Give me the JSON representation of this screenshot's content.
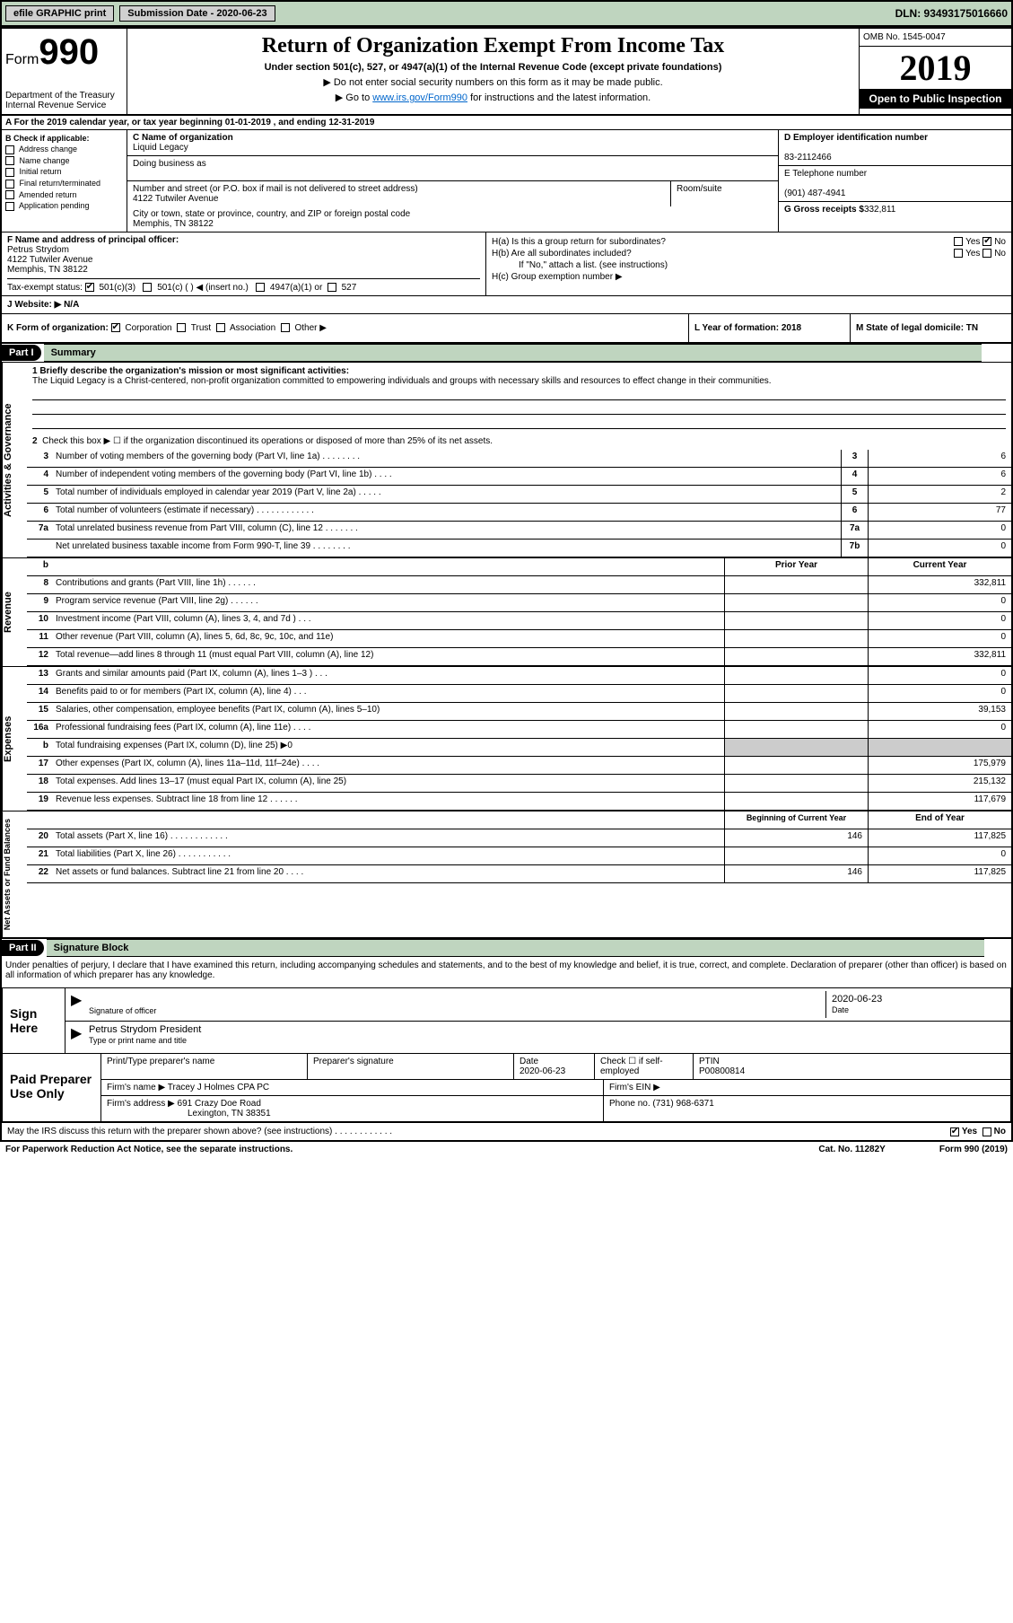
{
  "topbar": {
    "efile": "efile GRAPHIC print",
    "submission_label": "Submission Date - 2020-06-23",
    "dln": "DLN: 93493175016660"
  },
  "header": {
    "form_label": "Form",
    "form_num": "990",
    "dept": "Department of the Treasury\nInternal Revenue Service",
    "title": "Return of Organization Exempt From Income Tax",
    "subtitle": "Under section 501(c), 527, or 4947(a)(1) of the Internal Revenue Code (except private foundations)",
    "note1": "▶ Do not enter social security numbers on this form as it may be made public.",
    "note2_pre": "▶ Go to ",
    "note2_link": "www.irs.gov/Form990",
    "note2_post": " for instructions and the latest information.",
    "omb": "OMB No. 1545-0047",
    "year": "2019",
    "oti": "Open to Public Inspection"
  },
  "row_a": "A For the 2019 calendar year, or tax year beginning 01-01-2019   , and ending 12-31-2019",
  "sec_b": {
    "title": "B Check if applicable:",
    "opts": [
      "Address change",
      "Name change",
      "Initial return",
      "Final return/terminated",
      "Amended return",
      "Application pending"
    ]
  },
  "sec_c": {
    "name_label": "C Name of organization",
    "name": "Liquid Legacy",
    "dba_label": "Doing business as",
    "dba": "",
    "addr_label": "Number and street (or P.O. box if mail is not delivered to street address)",
    "addr": "4122 Tutwiler Avenue",
    "room_label": "Room/suite",
    "city_label": "City or town, state or province, country, and ZIP or foreign postal code",
    "city": "Memphis, TN  38122"
  },
  "sec_d": {
    "ein_label": "D Employer identification number",
    "ein": "83-2112466",
    "phone_label": "E Telephone number",
    "phone": "(901) 487-4941",
    "gross_label": "G Gross receipts $",
    "gross": "332,811"
  },
  "sec_f": {
    "label": "F  Name and address of principal officer:",
    "name": "Petrus Strydom",
    "addr1": "4122 Tutwiler Avenue",
    "addr2": "Memphis, TN  38122",
    "tax_label": "Tax-exempt status:",
    "t1": "501(c)(3)",
    "t2": "501(c) (  ) ◀ (insert no.)",
    "t3": "4947(a)(1) or",
    "t4": "527"
  },
  "sec_h": {
    "ha": "H(a)  Is this a group return for subordinates?",
    "hb": "H(b)  Are all subordinates included?",
    "hb_note": "If \"No,\" attach a list. (see instructions)",
    "hc": "H(c)  Group exemption number ▶",
    "yes": "Yes",
    "no": "No"
  },
  "row_j": "J   Website: ▶   N/A",
  "row_k": {
    "label": "K Form of organization:",
    "opts": [
      "Corporation",
      "Trust",
      "Association",
      "Other ▶"
    ],
    "l": "L Year of formation: 2018",
    "m": "M State of legal domicile: TN"
  },
  "part1": {
    "hdr": "Part I",
    "title": "Summary",
    "l1_label": "1  Briefly describe the organization's mission or most significant activities:",
    "l1_text": "The Liquid Legacy is a Christ-centered, non-profit organization committed to empowering individuals and groups with necessary skills and resources to effect change in their communities.",
    "l2": "Check this box ▶ ☐ if the organization discontinued its operations or disposed of more than 25% of its net assets."
  },
  "sides": {
    "s1": "Activities & Governance",
    "s2": "Revenue",
    "s3": "Expenses",
    "s4": "Net Assets or Fund Balances"
  },
  "gov_lines": [
    {
      "n": "3",
      "t": "Number of voting members of the governing body (Part VI, line 1a)  .   .   .   .   .   .   .   .",
      "b": "3",
      "v": "6"
    },
    {
      "n": "4",
      "t": "Number of independent voting members of the governing body (Part VI, line 1b)  .   .   .   .",
      "b": "4",
      "v": "6"
    },
    {
      "n": "5",
      "t": "Total number of individuals employed in calendar year 2019 (Part V, line 2a)  .   .   .   .   .",
      "b": "5",
      "v": "2"
    },
    {
      "n": "6",
      "t": "Total number of volunteers (estimate if necessary)   .   .   .   .   .   .   .   .   .   .   .   .",
      "b": "6",
      "v": "77"
    },
    {
      "n": "7a",
      "t": "Total unrelated business revenue from Part VIII, column (C), line 12   .   .   .   .   .   .   .",
      "b": "7a",
      "v": "0"
    },
    {
      "n": "",
      "t": "Net unrelated business taxable income from Form 990-T, line 39   .   .   .   .   .   .   .   .",
      "b": "7b",
      "v": "0"
    }
  ],
  "yr_hdr": {
    "prior": "Prior Year",
    "current": "Current Year"
  },
  "rev_lines": [
    {
      "n": "8",
      "t": "Contributions and grants (Part VIII, line 1h)   .   .   .   .   .   .",
      "p": "",
      "c": "332,811"
    },
    {
      "n": "9",
      "t": "Program service revenue (Part VIII, line 2g)   .   .   .   .   .   .",
      "p": "",
      "c": "0"
    },
    {
      "n": "10",
      "t": "Investment income (Part VIII, column (A), lines 3, 4, and 7d )   .   .   .",
      "p": "",
      "c": "0"
    },
    {
      "n": "11",
      "t": "Other revenue (Part VIII, column (A), lines 5, 6d, 8c, 9c, 10c, and 11e)",
      "p": "",
      "c": "0"
    },
    {
      "n": "12",
      "t": "Total revenue—add lines 8 through 11 (must equal Part VIII, column (A), line 12)",
      "p": "",
      "c": "332,811"
    }
  ],
  "exp_lines": [
    {
      "n": "13",
      "t": "Grants and similar amounts paid (Part IX, column (A), lines 1–3 )   .   .   .",
      "p": "",
      "c": "0"
    },
    {
      "n": "14",
      "t": "Benefits paid to or for members (Part IX, column (A), line 4)   .   .   .",
      "p": "",
      "c": "0"
    },
    {
      "n": "15",
      "t": "Salaries, other compensation, employee benefits (Part IX, column (A), lines 5–10)",
      "p": "",
      "c": "39,153"
    },
    {
      "n": "16a",
      "t": "Professional fundraising fees (Part IX, column (A), line 11e)   .   .   .   .",
      "p": "",
      "c": "0"
    },
    {
      "n": "b",
      "t": "Total fundraising expenses (Part IX, column (D), line 25) ▶0",
      "p": "gray",
      "c": "gray"
    },
    {
      "n": "17",
      "t": "Other expenses (Part IX, column (A), lines 11a–11d, 11f–24e)   .   .   .   .",
      "p": "",
      "c": "175,979"
    },
    {
      "n": "18",
      "t": "Total expenses. Add lines 13–17 (must equal Part IX, column (A), line 25)",
      "p": "",
      "c": "215,132"
    },
    {
      "n": "19",
      "t": "Revenue less expenses. Subtract line 18 from line 12  .   .   .   .   .   .",
      "p": "",
      "c": "117,679"
    }
  ],
  "na_hdr": {
    "begin": "Beginning of Current Year",
    "end": "End of Year"
  },
  "na_lines": [
    {
      "n": "20",
      "t": "Total assets (Part X, line 16)  .   .   .   .   .   .   .   .   .   .   .   .",
      "p": "146",
      "c": "117,825"
    },
    {
      "n": "21",
      "t": "Total liabilities (Part X, line 26)  .   .   .   .   .   .   .   .   .   .   .",
      "p": "",
      "c": "0"
    },
    {
      "n": "22",
      "t": "Net assets or fund balances. Subtract line 21 from line 20   .   .   .   .",
      "p": "146",
      "c": "117,825"
    }
  ],
  "part2": {
    "hdr": "Part II",
    "title": "Signature Block",
    "decl": "Under penalties of perjury, I declare that I have examined this return, including accompanying schedules and statements, and to the best of my knowledge and belief, it is true, correct, and complete. Declaration of preparer (other than officer) is based on all information of which preparer has any knowledge."
  },
  "sign": {
    "label": "Sign Here",
    "sig_of": "Signature of officer",
    "date": "2020-06-23",
    "date_label": "Date",
    "name": "Petrus Strydom President",
    "name_label": "Type or print name and title"
  },
  "prep": {
    "label": "Paid Preparer Use Only",
    "h1": "Print/Type preparer's name",
    "h2": "Preparer's signature",
    "h3": "Date",
    "h3v": "2020-06-23",
    "h4": "Check ☐ if self-employed",
    "h5": "PTIN",
    "h5v": "P00800814",
    "firm_label": "Firm's name    ▶",
    "firm": "Tracey J Holmes CPA PC",
    "ein_label": "Firm's EIN ▶",
    "addr_label": "Firm's address ▶",
    "addr1": "691 Crazy Doe Road",
    "addr2": "Lexington, TN  38351",
    "phone_label": "Phone no.",
    "phone": "(731) 968-6371",
    "discuss": "May the IRS discuss this return with the preparer shown above? (see instructions)   .   .   .   .   .   .   .   .   .   .   .   ."
  },
  "footer": {
    "l": "For Paperwork Reduction Act Notice, see the separate instructions.",
    "m": "Cat. No. 11282Y",
    "r": "Form 990 (2019)"
  }
}
